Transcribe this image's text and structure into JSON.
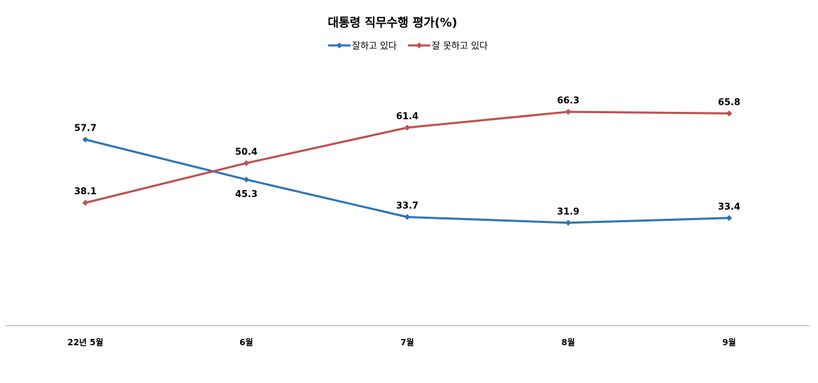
{
  "chart_data": {
    "type": "line",
    "title": "대통령 직무수행 평가(%)",
    "categories": [
      "22년 5월",
      "6월",
      "7월",
      "8월",
      "9월"
    ],
    "series": [
      {
        "name": "잘하고 있다",
        "color": "#2E75B6",
        "values": [
          57.7,
          45.3,
          33.7,
          31.9,
          33.4
        ]
      },
      {
        "name": "잘 못하고 있다",
        "color": "#C0504D",
        "values": [
          38.1,
          50.4,
          61.4,
          66.3,
          65.8
        ]
      }
    ],
    "xlabel": "",
    "ylabel": "",
    "grid": false,
    "legend_position": "top"
  }
}
